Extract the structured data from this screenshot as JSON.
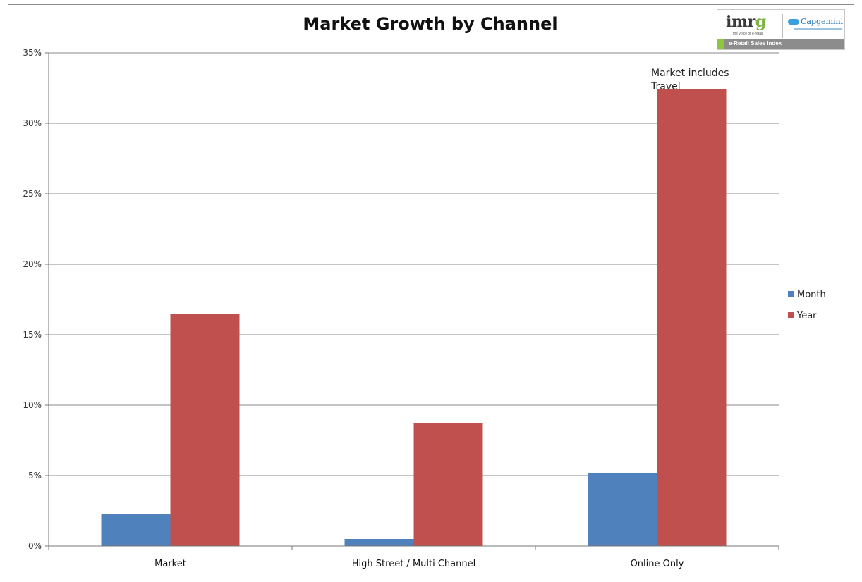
{
  "chart_data": {
    "type": "bar",
    "title": "Market Growth by Channel",
    "categories": [
      "Market",
      "High Street / Multi Channel",
      "Online Only"
    ],
    "series": [
      {
        "name": "Month",
        "values": [
          2.3,
          0.5,
          5.2
        ],
        "color": "#4f81bd"
      },
      {
        "name": "Year",
        "values": [
          16.5,
          8.7,
          32.4
        ],
        "color": "#c0504d"
      }
    ],
    "ylim": [
      0,
      35
    ],
    "yticks": [
      0,
      5,
      10,
      15,
      20,
      25,
      30,
      35
    ],
    "ytick_labels": [
      "0%",
      "5%",
      "10%",
      "15%",
      "20%",
      "25%",
      "30%",
      "35%"
    ],
    "grid": true,
    "legend": "right",
    "annotation": {
      "lines": [
        "Market includes",
        "Travel"
      ]
    }
  },
  "logo": {
    "imrg_main": "imr",
    "imrg_accent": "g",
    "imrg_tag": "the voice of e-retail",
    "partner": "Capgemini",
    "band_text": "e-Retail Sales Index"
  }
}
